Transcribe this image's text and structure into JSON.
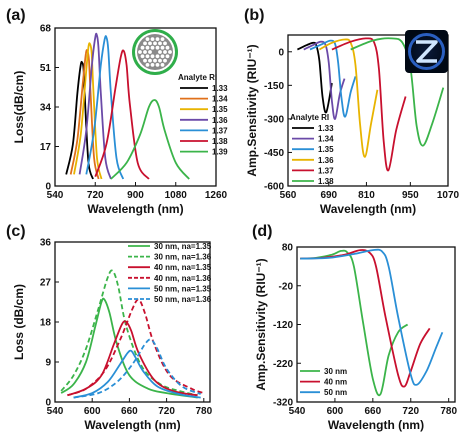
{
  "chart_data": [
    {
      "panel": "(a)",
      "type": "line",
      "xlabel": "Wavelength (nm)",
      "ylabel": "Loss(dB/cm)",
      "xlim": [
        540,
        1260
      ],
      "ylim": [
        0,
        68
      ],
      "xticks": [
        540,
        720,
        900,
        1080,
        1260
      ],
      "yticks": [
        0,
        17,
        34,
        51,
        68
      ],
      "legend_title": "Analyte RI",
      "legend_position": "center-right",
      "series": [
        {
          "name": "1.33",
          "color": "#000000",
          "x": [
            590,
            620,
            640,
            655,
            662,
            668,
            675,
            690,
            710
          ],
          "y": [
            5,
            18,
            40,
            52,
            53,
            50,
            35,
            10,
            3
          ]
        },
        {
          "name": "1.34",
          "color": "#e0701a",
          "x": [
            610,
            640,
            665,
            678,
            685,
            692,
            700,
            715,
            735
          ],
          "y": [
            5,
            20,
            45,
            57,
            58,
            54,
            38,
            12,
            3
          ]
        },
        {
          "name": "1.35",
          "color": "#e8b400",
          "x": [
            625,
            655,
            678,
            690,
            697,
            704,
            712,
            728,
            748
          ],
          "y": [
            5,
            22,
            48,
            60,
            61,
            57,
            40,
            12,
            3
          ]
        },
        {
          "name": "1.36",
          "color": "#6b4aa8",
          "x": [
            650,
            680,
            705,
            720,
            727,
            734,
            745,
            765,
            790
          ],
          "y": [
            5,
            24,
            52,
            64,
            65,
            60,
            40,
            12,
            3
          ]
        },
        {
          "name": "1.37",
          "color": "#2a8fd6",
          "x": [
            680,
            715,
            745,
            762,
            770,
            778,
            790,
            815,
            845
          ],
          "y": [
            5,
            24,
            52,
            63,
            64,
            59,
            40,
            12,
            3
          ]
        },
        {
          "name": "1.38",
          "color": "#c8102e",
          "x": [
            720,
            770,
            810,
            835,
            848,
            860,
            875,
            910,
            960
          ],
          "y": [
            4,
            18,
            42,
            56,
            58,
            52,
            35,
            10,
            3
          ]
        },
        {
          "name": "1.39",
          "color": "#3bb44a",
          "x": [
            790,
            860,
            920,
            960,
            985,
            1005,
            1030,
            1080,
            1140
          ],
          "y": [
            3,
            10,
            22,
            34,
            37,
            34,
            24,
            10,
            3
          ]
        }
      ]
    },
    {
      "panel": "(b)",
      "type": "line",
      "xlabel": "Wavelength (nm)",
      "ylabel": "Amp.Sensitivity (RIU⁻¹)",
      "xlim": [
        560,
        1070
      ],
      "ylim": [
        -600,
        75
      ],
      "xticks": [
        560,
        690,
        810,
        950,
        1070
      ],
      "yticks": [
        0,
        -150,
        -300,
        -450,
        -600
      ],
      "legend_title": "Analyte RI",
      "legend_position": "bottom-left",
      "series": [
        {
          "name": "1.33",
          "color": "#000000",
          "x": [
            590,
            620,
            640,
            650,
            660,
            670,
            682,
            700
          ],
          "y": [
            10,
            30,
            40,
            30,
            -40,
            -200,
            -270,
            -140
          ]
        },
        {
          "name": "1.34",
          "color": "#6b4aa8",
          "x": [
            610,
            640,
            665,
            680,
            690,
            700,
            710,
            725,
            740
          ],
          "y": [
            10,
            30,
            45,
            30,
            -50,
            -220,
            -300,
            -190,
            -120
          ]
        },
        {
          "name": "1.35",
          "color": "#2a8fd6",
          "x": [
            630,
            670,
            695,
            710,
            720,
            730,
            742,
            760,
            775
          ],
          "y": [
            10,
            35,
            50,
            35,
            -50,
            -200,
            -290,
            -180,
            -110
          ]
        },
        {
          "name": "1.36",
          "color": "#e8b400",
          "x": [
            660,
            700,
            740,
            760,
            775,
            790,
            805,
            825,
            845
          ],
          "y": [
            10,
            40,
            55,
            40,
            -60,
            -330,
            -470,
            -320,
            -170
          ]
        },
        {
          "name": "1.37",
          "color": "#c8102e",
          "x": [
            700,
            760,
            810,
            835,
            850,
            865,
            880,
            905,
            935
          ],
          "y": [
            10,
            45,
            60,
            40,
            -80,
            -400,
            -530,
            -350,
            -200
          ]
        },
        {
          "name": "1.38",
          "color": "#3bb44a",
          "x": [
            760,
            830,
            890,
            925,
            950,
            970,
            990,
            1020,
            1055
          ],
          "y": [
            10,
            50,
            60,
            40,
            -70,
            -330,
            -420,
            -320,
            -160
          ]
        }
      ]
    },
    {
      "panel": "(c)",
      "type": "line",
      "xlabel": "Wavelength (nm)",
      "ylabel": "Loss (dB/cm)",
      "xlim": [
        540,
        790
      ],
      "ylim": [
        0,
        36
      ],
      "xticks": [
        540,
        600,
        660,
        720,
        780
      ],
      "yticks": [
        0,
        9,
        18,
        27,
        36
      ],
      "legend_position": "top-right",
      "series": [
        {
          "name": "30 nm, na=1.35",
          "color": "#3bb44a",
          "dash": false,
          "x": [
            550,
            570,
            590,
            605,
            615,
            620,
            628,
            640,
            660,
            690,
            720,
            770
          ],
          "y": [
            2,
            4,
            9,
            17,
            22.5,
            23,
            20,
            13,
            6,
            3,
            2,
            1
          ]
        },
        {
          "name": "30 nm, na=1.36",
          "color": "#3bb44a",
          "dash": true,
          "x": [
            550,
            570,
            590,
            610,
            625,
            633,
            642,
            655,
            680,
            710,
            740,
            770
          ],
          "y": [
            2.5,
            6,
            12,
            21,
            28,
            29.5,
            26,
            17,
            8,
            4,
            2.5,
            1.5
          ]
        },
        {
          "name": "40 nm, na=1.35",
          "color": "#c8102e",
          "dash": false,
          "x": [
            560,
            590,
            615,
            635,
            648,
            655,
            663,
            675,
            700,
            730,
            770
          ],
          "y": [
            1.5,
            3,
            6,
            13,
            17.5,
            18,
            16,
            11,
            5,
            2.5,
            1.5
          ]
        },
        {
          "name": "40 nm, na=1.36",
          "color": "#c8102e",
          "dash": true,
          "x": [
            560,
            590,
            620,
            645,
            665,
            675,
            685,
            700,
            725,
            760,
            780
          ],
          "y": [
            1.5,
            3,
            7,
            14,
            21,
            23,
            20,
            13,
            6,
            3,
            2
          ]
        },
        {
          "name": "50 nm, na=1.35",
          "color": "#2a8fd6",
          "dash": false,
          "x": [
            570,
            600,
            625,
            645,
            657,
            663,
            670,
            682,
            705,
            740,
            775
          ],
          "y": [
            1,
            2,
            4.5,
            8.5,
            11,
            11.5,
            10,
            7,
            3.5,
            1.8,
            1
          ]
        },
        {
          "name": "50 nm, na=1.36",
          "color": "#2a8fd6",
          "dash": true,
          "x": [
            570,
            610,
            640,
            665,
            685,
            695,
            705,
            720,
            745,
            775
          ],
          "y": [
            1,
            2,
            4.5,
            8.5,
            13,
            14,
            12,
            7.5,
            3.5,
            1.8
          ]
        }
      ]
    },
    {
      "panel": "(d)",
      "type": "line",
      "xlabel": "Wavelength (nm)",
      "ylabel": "Amp.Sensitivity (RIU⁻¹)",
      "xlim": [
        540,
        790
      ],
      "ylim": [
        -320,
        80
      ],
      "xticks": [
        540,
        600,
        660,
        720,
        780
      ],
      "yticks": [
        80,
        -20,
        -120,
        -220,
        -320
      ],
      "legend_position": "bottom-left",
      "series": [
        {
          "name": "30 nm",
          "color": "#3bb44a",
          "x": [
            545,
            570,
            595,
            610,
            620,
            630,
            645,
            660,
            672,
            685,
            700,
            715
          ],
          "y": [
            50,
            52,
            60,
            70,
            65,
            30,
            -120,
            -260,
            -300,
            -200,
            -140,
            -120
          ]
        },
        {
          "name": "40 nm",
          "color": "#c8102e",
          "x": [
            545,
            580,
            615,
            640,
            655,
            665,
            680,
            700,
            710,
            720,
            735,
            750
          ],
          "y": [
            50,
            52,
            60,
            72,
            65,
            30,
            -100,
            -250,
            -280,
            -240,
            -170,
            -130
          ]
        },
        {
          "name": "50 nm",
          "color": "#2a8fd6",
          "x": [
            545,
            590,
            630,
            660,
            675,
            685,
            700,
            720,
            730,
            745,
            760,
            770
          ],
          "y": [
            50,
            52,
            62,
            72,
            68,
            30,
            -100,
            -250,
            -275,
            -240,
            -180,
            -140
          ]
        }
      ]
    }
  ]
}
